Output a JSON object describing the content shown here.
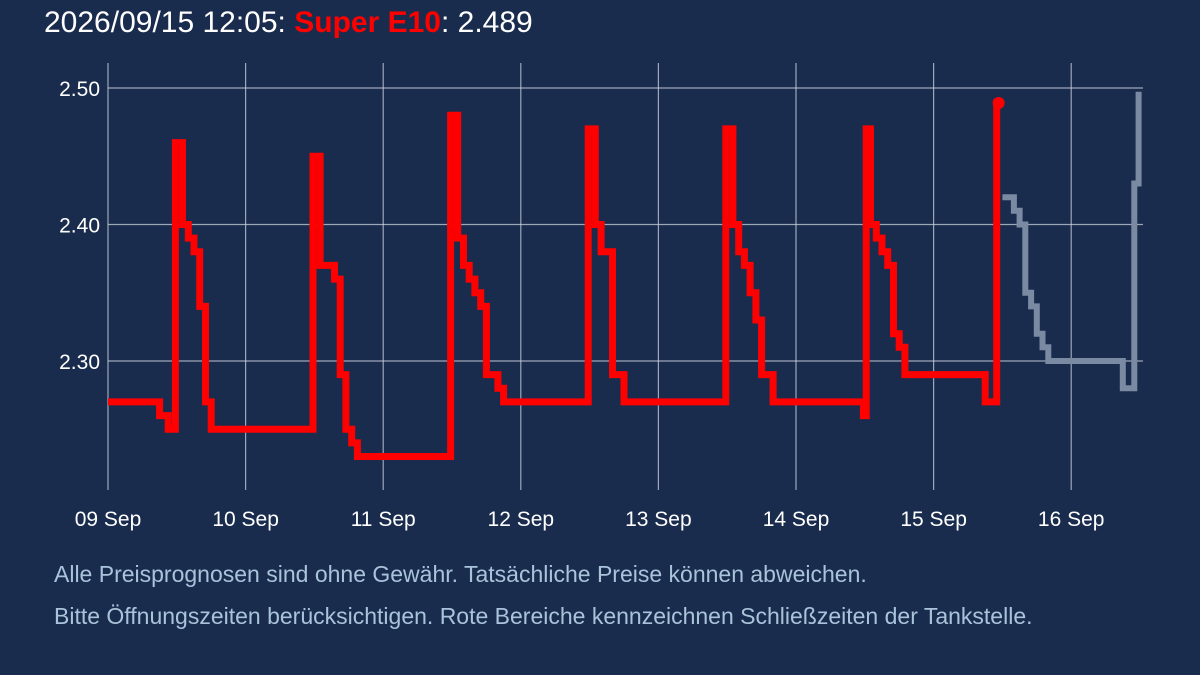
{
  "header": {
    "timestamp": "2026/09/15 12:05:",
    "fuel": "Super E10",
    "separator": ":",
    "price": "2.489"
  },
  "colors": {
    "background": "#1a2c4d",
    "history": "#ff0000",
    "forecast": "#7a8aa3",
    "grid": "#c8d0dc",
    "text": "#ffffff",
    "disclaimer": "#a9c3da"
  },
  "chart_data": {
    "type": "line",
    "title": "",
    "xlabel": "",
    "ylabel": "",
    "x_domain": [
      "2026-09-09 00:00",
      "2026-09-16 12:00"
    ],
    "ylim": [
      2.21,
      2.51
    ],
    "grid": true,
    "x_ticks": [
      "09 Sep",
      "10 Sep",
      "11 Sep",
      "12 Sep",
      "13 Sep",
      "14 Sep",
      "15 Sep",
      "16 Sep"
    ],
    "y_ticks": [
      2.3,
      2.4,
      2.5
    ],
    "y_tick_labels": [
      "2.30",
      "2.40",
      "2.50"
    ],
    "series": [
      {
        "role": "history",
        "step": true,
        "points": [
          [
            "2026-09-09 00:00",
            2.27
          ],
          [
            "2026-09-09 09:00",
            2.26
          ],
          [
            "2026-09-09 10:30",
            2.25
          ],
          [
            "2026-09-09 11:45",
            2.46
          ],
          [
            "2026-09-09 13:00",
            2.4
          ],
          [
            "2026-09-09 14:00",
            2.39
          ],
          [
            "2026-09-09 15:00",
            2.38
          ],
          [
            "2026-09-09 16:00",
            2.34
          ],
          [
            "2026-09-09 17:00",
            2.27
          ],
          [
            "2026-09-09 18:00",
            2.25
          ],
          [
            "2026-09-10 11:45",
            2.45
          ],
          [
            "2026-09-10 13:00",
            2.37
          ],
          [
            "2026-09-10 15:30",
            2.36
          ],
          [
            "2026-09-10 16:30",
            2.29
          ],
          [
            "2026-09-10 17:30",
            2.25
          ],
          [
            "2026-09-10 18:30",
            2.24
          ],
          [
            "2026-09-10 19:30",
            2.23
          ],
          [
            "2026-09-11 11:45",
            2.48
          ],
          [
            "2026-09-11 13:00",
            2.39
          ],
          [
            "2026-09-11 14:00",
            2.37
          ],
          [
            "2026-09-11 15:00",
            2.36
          ],
          [
            "2026-09-11 16:00",
            2.35
          ],
          [
            "2026-09-11 17:00",
            2.34
          ],
          [
            "2026-09-11 18:00",
            2.29
          ],
          [
            "2026-09-11 20:00",
            2.28
          ],
          [
            "2026-09-11 21:00",
            2.27
          ],
          [
            "2026-09-12 11:45",
            2.47
          ],
          [
            "2026-09-12 13:00",
            2.4
          ],
          [
            "2026-09-12 14:00",
            2.38
          ],
          [
            "2026-09-12 16:00",
            2.29
          ],
          [
            "2026-09-12 18:00",
            2.27
          ],
          [
            "2026-09-13 11:45",
            2.47
          ],
          [
            "2026-09-13 13:00",
            2.4
          ],
          [
            "2026-09-13 14:00",
            2.38
          ],
          [
            "2026-09-13 15:00",
            2.37
          ],
          [
            "2026-09-13 16:00",
            2.35
          ],
          [
            "2026-09-13 17:00",
            2.33
          ],
          [
            "2026-09-13 18:00",
            2.29
          ],
          [
            "2026-09-13 20:00",
            2.27
          ],
          [
            "2026-09-14 11:45",
            2.26
          ],
          [
            "2026-09-14 12:15",
            2.47
          ],
          [
            "2026-09-14 13:00",
            2.4
          ],
          [
            "2026-09-14 14:00",
            2.39
          ],
          [
            "2026-09-14 15:00",
            2.38
          ],
          [
            "2026-09-14 16:00",
            2.37
          ],
          [
            "2026-09-14 17:00",
            2.32
          ],
          [
            "2026-09-14 18:00",
            2.31
          ],
          [
            "2026-09-14 19:00",
            2.29
          ],
          [
            "2026-09-15 09:00",
            2.27
          ],
          [
            "2026-09-15 11:00",
            2.489
          ]
        ]
      },
      {
        "role": "forecast",
        "step": true,
        "points": [
          [
            "2026-09-15 12:00",
            2.42
          ],
          [
            "2026-09-15 14:00",
            2.41
          ],
          [
            "2026-09-15 15:00",
            2.4
          ],
          [
            "2026-09-15 16:00",
            2.35
          ],
          [
            "2026-09-15 17:00",
            2.34
          ],
          [
            "2026-09-15 18:00",
            2.32
          ],
          [
            "2026-09-15 19:00",
            2.31
          ],
          [
            "2026-09-15 20:00",
            2.3
          ],
          [
            "2026-09-16 09:00",
            2.28
          ],
          [
            "2026-09-16 11:00",
            2.43
          ],
          [
            "2026-09-16 11:45",
            2.495
          ]
        ]
      }
    ],
    "marker": {
      "x": "2026-09-15 11:00",
      "y": 2.489
    }
  },
  "disclaimer": {
    "line1": "Alle Preisprognosen sind ohne Gewähr. Tatsächliche Preise können abweichen.",
    "line2": "Bitte Öffnungszeiten berücksichtigen. Rote Bereiche kennzeichnen Schließzeiten der Tankstelle."
  }
}
